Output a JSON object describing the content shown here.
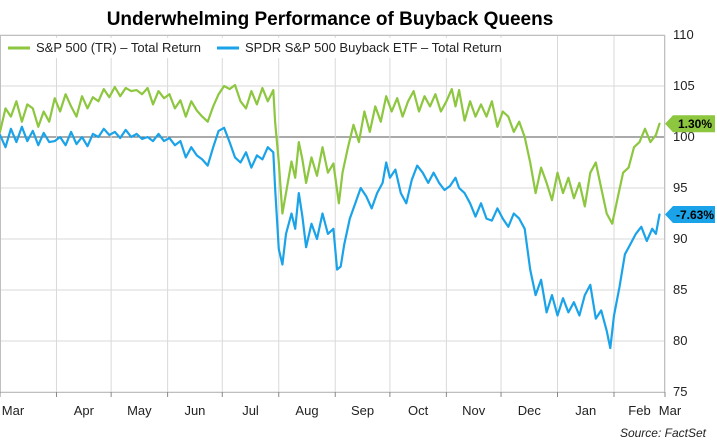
{
  "chart_data": {
    "type": "line",
    "title": "Underwhelming Performance of Buyback Queens",
    "source": "Source: FactSet",
    "ylim": [
      75,
      110
    ],
    "yticks": [
      75,
      80,
      85,
      90,
      95,
      100,
      105,
      110
    ],
    "xlim": [
      0,
      365
    ],
    "months": [
      {
        "label": "Mar",
        "x": 0
      },
      {
        "label": "Apr",
        "x": 31
      },
      {
        "label": "May",
        "x": 61
      },
      {
        "label": "Jun",
        "x": 92
      },
      {
        "label": "Jul",
        "x": 122
      },
      {
        "label": "Aug",
        "x": 153
      },
      {
        "label": "Sep",
        "x": 184
      },
      {
        "label": "Oct",
        "x": 214
      },
      {
        "label": "Nov",
        "x": 245
      },
      {
        "label": "Dec",
        "x": 275
      },
      {
        "label": "Jan",
        "x": 306
      },
      {
        "label": "Feb",
        "x": 337
      },
      {
        "label": "Mar",
        "x": 365
      }
    ],
    "grid": true,
    "legend_position": "top-left",
    "series": [
      {
        "name": "S&P 500 (TR) – Total Return",
        "color": "#8dc63f",
        "end_label": "1.30%",
        "points": [
          [
            0,
            100.5
          ],
          [
            3,
            102.8
          ],
          [
            6,
            102.0
          ],
          [
            9,
            103.5
          ],
          [
            12,
            101.5
          ],
          [
            15,
            103.2
          ],
          [
            18,
            102.8
          ],
          [
            21,
            101.0
          ],
          [
            24,
            102.5
          ],
          [
            27,
            101.5
          ],
          [
            30,
            103.8
          ],
          [
            33,
            102.5
          ],
          [
            36,
            104.2
          ],
          [
            39,
            103.0
          ],
          [
            42,
            102.0
          ],
          [
            45,
            104.0
          ],
          [
            48,
            102.8
          ],
          [
            51,
            103.9
          ],
          [
            54,
            103.5
          ],
          [
            57,
            104.7
          ],
          [
            60,
            103.9
          ],
          [
            63,
            104.9
          ],
          [
            66,
            104.0
          ],
          [
            69,
            104.8
          ],
          [
            72,
            104.5
          ],
          [
            75,
            104.6
          ],
          [
            78,
            104.2
          ],
          [
            81,
            104.8
          ],
          [
            84,
            103.2
          ],
          [
            87,
            104.5
          ],
          [
            90,
            103.8
          ],
          [
            93,
            104.2
          ],
          [
            96,
            102.8
          ],
          [
            99,
            103.6
          ],
          [
            102,
            102.0
          ],
          [
            105,
            103.5
          ],
          [
            108,
            102.6
          ],
          [
            111,
            102.0
          ],
          [
            114,
            101.5
          ],
          [
            117,
            103.0
          ],
          [
            120,
            104.2
          ],
          [
            123,
            105.0
          ],
          [
            126,
            104.7
          ],
          [
            129,
            105.1
          ],
          [
            132,
            103.5
          ],
          [
            135,
            102.8
          ],
          [
            138,
            104.5
          ],
          [
            141,
            103.2
          ],
          [
            144,
            104.8
          ],
          [
            147,
            103.5
          ],
          [
            150,
            104.6
          ],
          [
            151,
            101.5
          ],
          [
            153,
            97.5
          ],
          [
            155,
            92.5
          ],
          [
            157,
            94.5
          ],
          [
            160,
            97.6
          ],
          [
            162,
            96.0
          ],
          [
            164,
            99.5
          ],
          [
            166,
            97.8
          ],
          [
            168,
            95.5
          ],
          [
            171,
            98.0
          ],
          [
            174,
            96.2
          ],
          [
            177,
            99.0
          ],
          [
            180,
            96.5
          ],
          [
            183,
            97.4
          ],
          [
            186,
            93.5
          ],
          [
            188,
            96.5
          ],
          [
            191,
            99.0
          ],
          [
            194,
            101.2
          ],
          [
            197,
            99.5
          ],
          [
            200,
            102.5
          ],
          [
            203,
            100.5
          ],
          [
            206,
            103.0
          ],
          [
            209,
            101.5
          ],
          [
            212,
            104.0
          ],
          [
            215,
            102.5
          ],
          [
            218,
            103.8
          ],
          [
            221,
            102.0
          ],
          [
            224,
            103.5
          ],
          [
            227,
            104.5
          ],
          [
            230,
            102.5
          ],
          [
            233,
            104.0
          ],
          [
            236,
            103.0
          ],
          [
            239,
            104.2
          ],
          [
            242,
            102.5
          ],
          [
            245,
            103.5
          ],
          [
            248,
            104.7
          ],
          [
            250,
            103.0
          ],
          [
            252,
            104.6
          ],
          [
            255,
            101.6
          ],
          [
            258,
            103.5
          ],
          [
            261,
            102.0
          ],
          [
            264,
            103.2
          ],
          [
            267,
            102.0
          ],
          [
            270,
            103.5
          ],
          [
            273,
            101.0
          ],
          [
            276,
            102.5
          ],
          [
            279,
            102.0
          ],
          [
            282,
            100.5
          ],
          [
            285,
            101.5
          ],
          [
            288,
            100.0
          ],
          [
            291,
            97.5
          ],
          [
            294,
            94.5
          ],
          [
            297,
            97.0
          ],
          [
            300,
            95.5
          ],
          [
            303,
            93.8
          ],
          [
            306,
            96.5
          ],
          [
            309,
            94.5
          ],
          [
            312,
            96.0
          ],
          [
            315,
            94.0
          ],
          [
            318,
            95.5
          ],
          [
            321,
            93.2
          ],
          [
            324,
            96.5
          ],
          [
            327,
            97.5
          ],
          [
            330,
            95.0
          ],
          [
            333,
            92.5
          ],
          [
            336,
            91.5
          ],
          [
            339,
            94.0
          ],
          [
            342,
            96.5
          ],
          [
            345,
            97.0
          ],
          [
            348,
            99.0
          ],
          [
            351,
            99.5
          ],
          [
            354,
            100.8
          ],
          [
            357,
            99.5
          ],
          [
            360,
            100.2
          ],
          [
            362,
            101.3
          ]
        ]
      },
      {
        "name": "SPDR S&P 500 Buyback ETF – Total Return",
        "color": "#1aa3e8",
        "end_label": "-7.63%",
        "points": [
          [
            0,
            100.2
          ],
          [
            3,
            99.0
          ],
          [
            6,
            100.8
          ],
          [
            9,
            99.5
          ],
          [
            12,
            101.0
          ],
          [
            15,
            99.6
          ],
          [
            18,
            100.6
          ],
          [
            21,
            99.2
          ],
          [
            24,
            100.4
          ],
          [
            27,
            99.5
          ],
          [
            30,
            99.6
          ],
          [
            33,
            100.0
          ],
          [
            36,
            99.2
          ],
          [
            39,
            100.5
          ],
          [
            42,
            99.3
          ],
          [
            45,
            100.0
          ],
          [
            48,
            99.1
          ],
          [
            51,
            100.3
          ],
          [
            54,
            100.0
          ],
          [
            57,
            100.8
          ],
          [
            60,
            100.2
          ],
          [
            63,
            100.5
          ],
          [
            66,
            99.9
          ],
          [
            69,
            100.7
          ],
          [
            72,
            100.0
          ],
          [
            75,
            100.3
          ],
          [
            78,
            99.8
          ],
          [
            81,
            100.0
          ],
          [
            84,
            99.6
          ],
          [
            87,
            100.3
          ],
          [
            90,
            99.6
          ],
          [
            93,
            99.9
          ],
          [
            96,
            99.2
          ],
          [
            99,
            99.6
          ],
          [
            102,
            98.0
          ],
          [
            105,
            99.0
          ],
          [
            108,
            98.2
          ],
          [
            111,
            97.8
          ],
          [
            114,
            97.2
          ],
          [
            117,
            99.0
          ],
          [
            120,
            100.6
          ],
          [
            123,
            100.9
          ],
          [
            126,
            99.5
          ],
          [
            129,
            98.0
          ],
          [
            132,
            97.5
          ],
          [
            135,
            98.5
          ],
          [
            138,
            97.0
          ],
          [
            141,
            98.2
          ],
          [
            144,
            97.8
          ],
          [
            147,
            99.0
          ],
          [
            150,
            98.5
          ],
          [
            151,
            95.0
          ],
          [
            153,
            89.0
          ],
          [
            155,
            87.5
          ],
          [
            157,
            90.5
          ],
          [
            160,
            92.5
          ],
          [
            162,
            91.0
          ],
          [
            164,
            94.5
          ],
          [
            166,
            92.2
          ],
          [
            168,
            89.2
          ],
          [
            171,
            91.5
          ],
          [
            174,
            90.0
          ],
          [
            177,
            92.5
          ],
          [
            180,
            90.5
          ],
          [
            183,
            91.0
          ],
          [
            185,
            87.0
          ],
          [
            187,
            87.3
          ],
          [
            189,
            89.5
          ],
          [
            192,
            92.0
          ],
          [
            195,
            93.5
          ],
          [
            198,
            95.0
          ],
          [
            201,
            94.2
          ],
          [
            204,
            93.0
          ],
          [
            207,
            94.5
          ],
          [
            210,
            95.5
          ],
          [
            212,
            97.5
          ],
          [
            214,
            96.0
          ],
          [
            217,
            96.8
          ],
          [
            220,
            94.5
          ],
          [
            223,
            93.5
          ],
          [
            226,
            95.8
          ],
          [
            229,
            97.2
          ],
          [
            232,
            96.5
          ],
          [
            235,
            95.5
          ],
          [
            238,
            96.5
          ],
          [
            241,
            95.5
          ],
          [
            244,
            94.8
          ],
          [
            247,
            95.2
          ],
          [
            250,
            96.0
          ],
          [
            252,
            95.0
          ],
          [
            255,
            94.5
          ],
          [
            258,
            93.5
          ],
          [
            261,
            92.2
          ],
          [
            264,
            93.5
          ],
          [
            267,
            92.0
          ],
          [
            270,
            91.8
          ],
          [
            273,
            93.0
          ],
          [
            276,
            92.0
          ],
          [
            279,
            91.2
          ],
          [
            282,
            92.5
          ],
          [
            285,
            92.0
          ],
          [
            288,
            91.0
          ],
          [
            291,
            87.0
          ],
          [
            294,
            84.5
          ],
          [
            297,
            86.0
          ],
          [
            300,
            82.8
          ],
          [
            303,
            84.5
          ],
          [
            306,
            82.5
          ],
          [
            309,
            84.2
          ],
          [
            312,
            82.8
          ],
          [
            315,
            83.8
          ],
          [
            318,
            82.5
          ],
          [
            321,
            84.5
          ],
          [
            324,
            85.5
          ],
          [
            327,
            82.2
          ],
          [
            330,
            83.0
          ],
          [
            333,
            81.0
          ],
          [
            335,
            79.3
          ],
          [
            337,
            82.5
          ],
          [
            340,
            85.3
          ],
          [
            343,
            88.5
          ],
          [
            346,
            89.5
          ],
          [
            349,
            90.5
          ],
          [
            352,
            91.2
          ],
          [
            355,
            89.8
          ],
          [
            358,
            91.0
          ],
          [
            360,
            90.5
          ],
          [
            362,
            92.4
          ]
        ]
      }
    ]
  }
}
